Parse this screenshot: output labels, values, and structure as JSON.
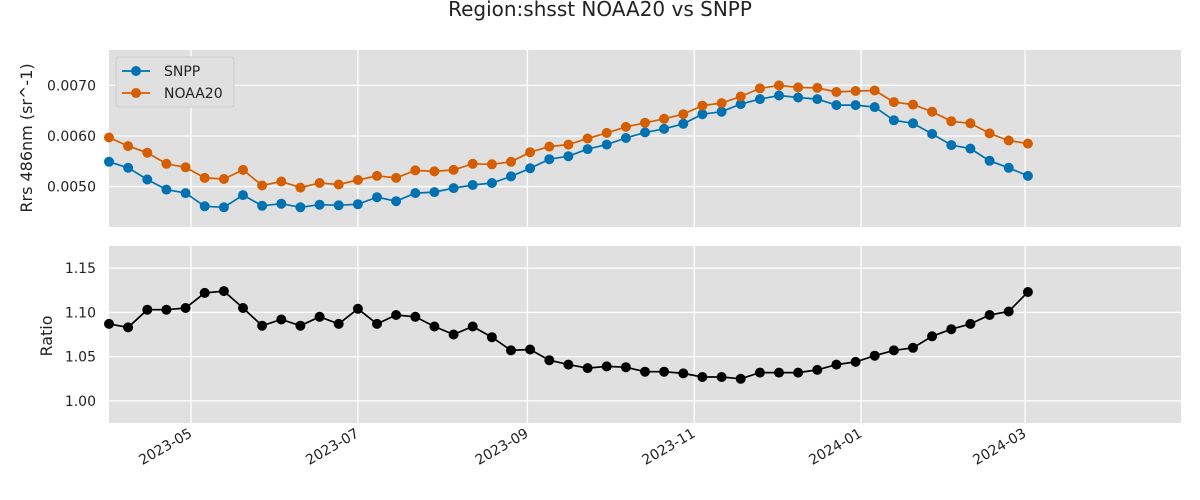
{
  "figure": {
    "title": "Region:shsst NOAA20 vs SNPP"
  },
  "chart_data": [
    {
      "type": "line",
      "ylabel": "Rrs 486nm (sr^-1)",
      "ylim": [
        0.0042,
        0.0077
      ],
      "yticks": [
        {
          "value": 0.005,
          "label": "0.0050"
        },
        {
          "value": 0.006,
          "label": "0.0060"
        },
        {
          "value": 0.007,
          "label": "0.0070"
        }
      ],
      "grid": true,
      "legend": "top-left",
      "series": [
        {
          "name": "SNPP",
          "color": "#0072b2",
          "values": [
            0.00549,
            0.00537,
            0.00514,
            0.00494,
            0.00487,
            0.00461,
            0.00459,
            0.00483,
            0.00462,
            0.00466,
            0.00459,
            0.00464,
            0.00463,
            0.00465,
            0.00479,
            0.00471,
            0.00487,
            0.00489,
            0.00497,
            0.00503,
            0.00507,
            0.0052,
            0.00536,
            0.00554,
            0.0056,
            0.00574,
            0.00583,
            0.00596,
            0.00607,
            0.00614,
            0.00624,
            0.00643,
            0.00648,
            0.00663,
            0.00673,
            0.0068,
            0.00676,
            0.00673,
            0.00661,
            0.00661,
            0.00657,
            0.00631,
            0.00625,
            0.00604,
            0.00582,
            0.00575,
            0.00551,
            0.00537,
            0.00521
          ]
        },
        {
          "name": "NOAA20",
          "color": "#d55e00",
          "values": [
            0.00597,
            0.0058,
            0.00567,
            0.00545,
            0.00538,
            0.00517,
            0.00515,
            0.00533,
            0.00502,
            0.0051,
            0.00498,
            0.00507,
            0.00504,
            0.00513,
            0.00521,
            0.00517,
            0.00532,
            0.0053,
            0.00533,
            0.00545,
            0.00544,
            0.00549,
            0.00568,
            0.00579,
            0.00583,
            0.00595,
            0.00606,
            0.00618,
            0.00626,
            0.00634,
            0.00643,
            0.0066,
            0.00665,
            0.00678,
            0.00694,
            0.007,
            0.00696,
            0.00695,
            0.00687,
            0.00689,
            0.0069,
            0.00667,
            0.00662,
            0.00648,
            0.00629,
            0.00625,
            0.00605,
            0.00591,
            0.00585
          ]
        }
      ]
    },
    {
      "type": "line",
      "ylabel": "Ratio",
      "ylim": [
        0.975,
        1.175
      ],
      "yticks": [
        {
          "value": 1.0,
          "label": "1.00"
        },
        {
          "value": 1.05,
          "label": "1.05"
        },
        {
          "value": 1.1,
          "label": "1.10"
        },
        {
          "value": 1.15,
          "label": "1.15"
        }
      ],
      "grid": true,
      "series": [
        {
          "color": "#000000",
          "values": [
            1.087,
            1.083,
            1.103,
            1.103,
            1.105,
            1.122,
            1.124,
            1.105,
            1.085,
            1.092,
            1.085,
            1.095,
            1.087,
            1.104,
            1.087,
            1.097,
            1.095,
            1.084,
            1.075,
            1.084,
            1.072,
            1.057,
            1.058,
            1.046,
            1.041,
            1.037,
            1.039,
            1.038,
            1.033,
            1.033,
            1.031,
            1.027,
            1.027,
            1.025,
            1.032,
            1.032,
            1.032,
            1.035,
            1.041,
            1.044,
            1.051,
            1.057,
            1.06,
            1.073,
            1.081,
            1.087,
            1.097,
            1.101,
            1.123
          ]
        }
      ]
    }
  ],
  "x_axis": {
    "x_start": "2023-04-01",
    "step_days": 7,
    "xlim": [
      "2023-04-01",
      "2024-04-27"
    ],
    "ticks": [
      {
        "date": "2023-05-01",
        "label": "2023-05"
      },
      {
        "date": "2023-07-01",
        "label": "2023-07"
      },
      {
        "date": "2023-09-01",
        "label": "2023-09"
      },
      {
        "date": "2023-11-01",
        "label": "2023-11"
      },
      {
        "date": "2024-01-01",
        "label": "2024-01"
      },
      {
        "date": "2024-03-01",
        "label": "2024-03"
      }
    ]
  }
}
